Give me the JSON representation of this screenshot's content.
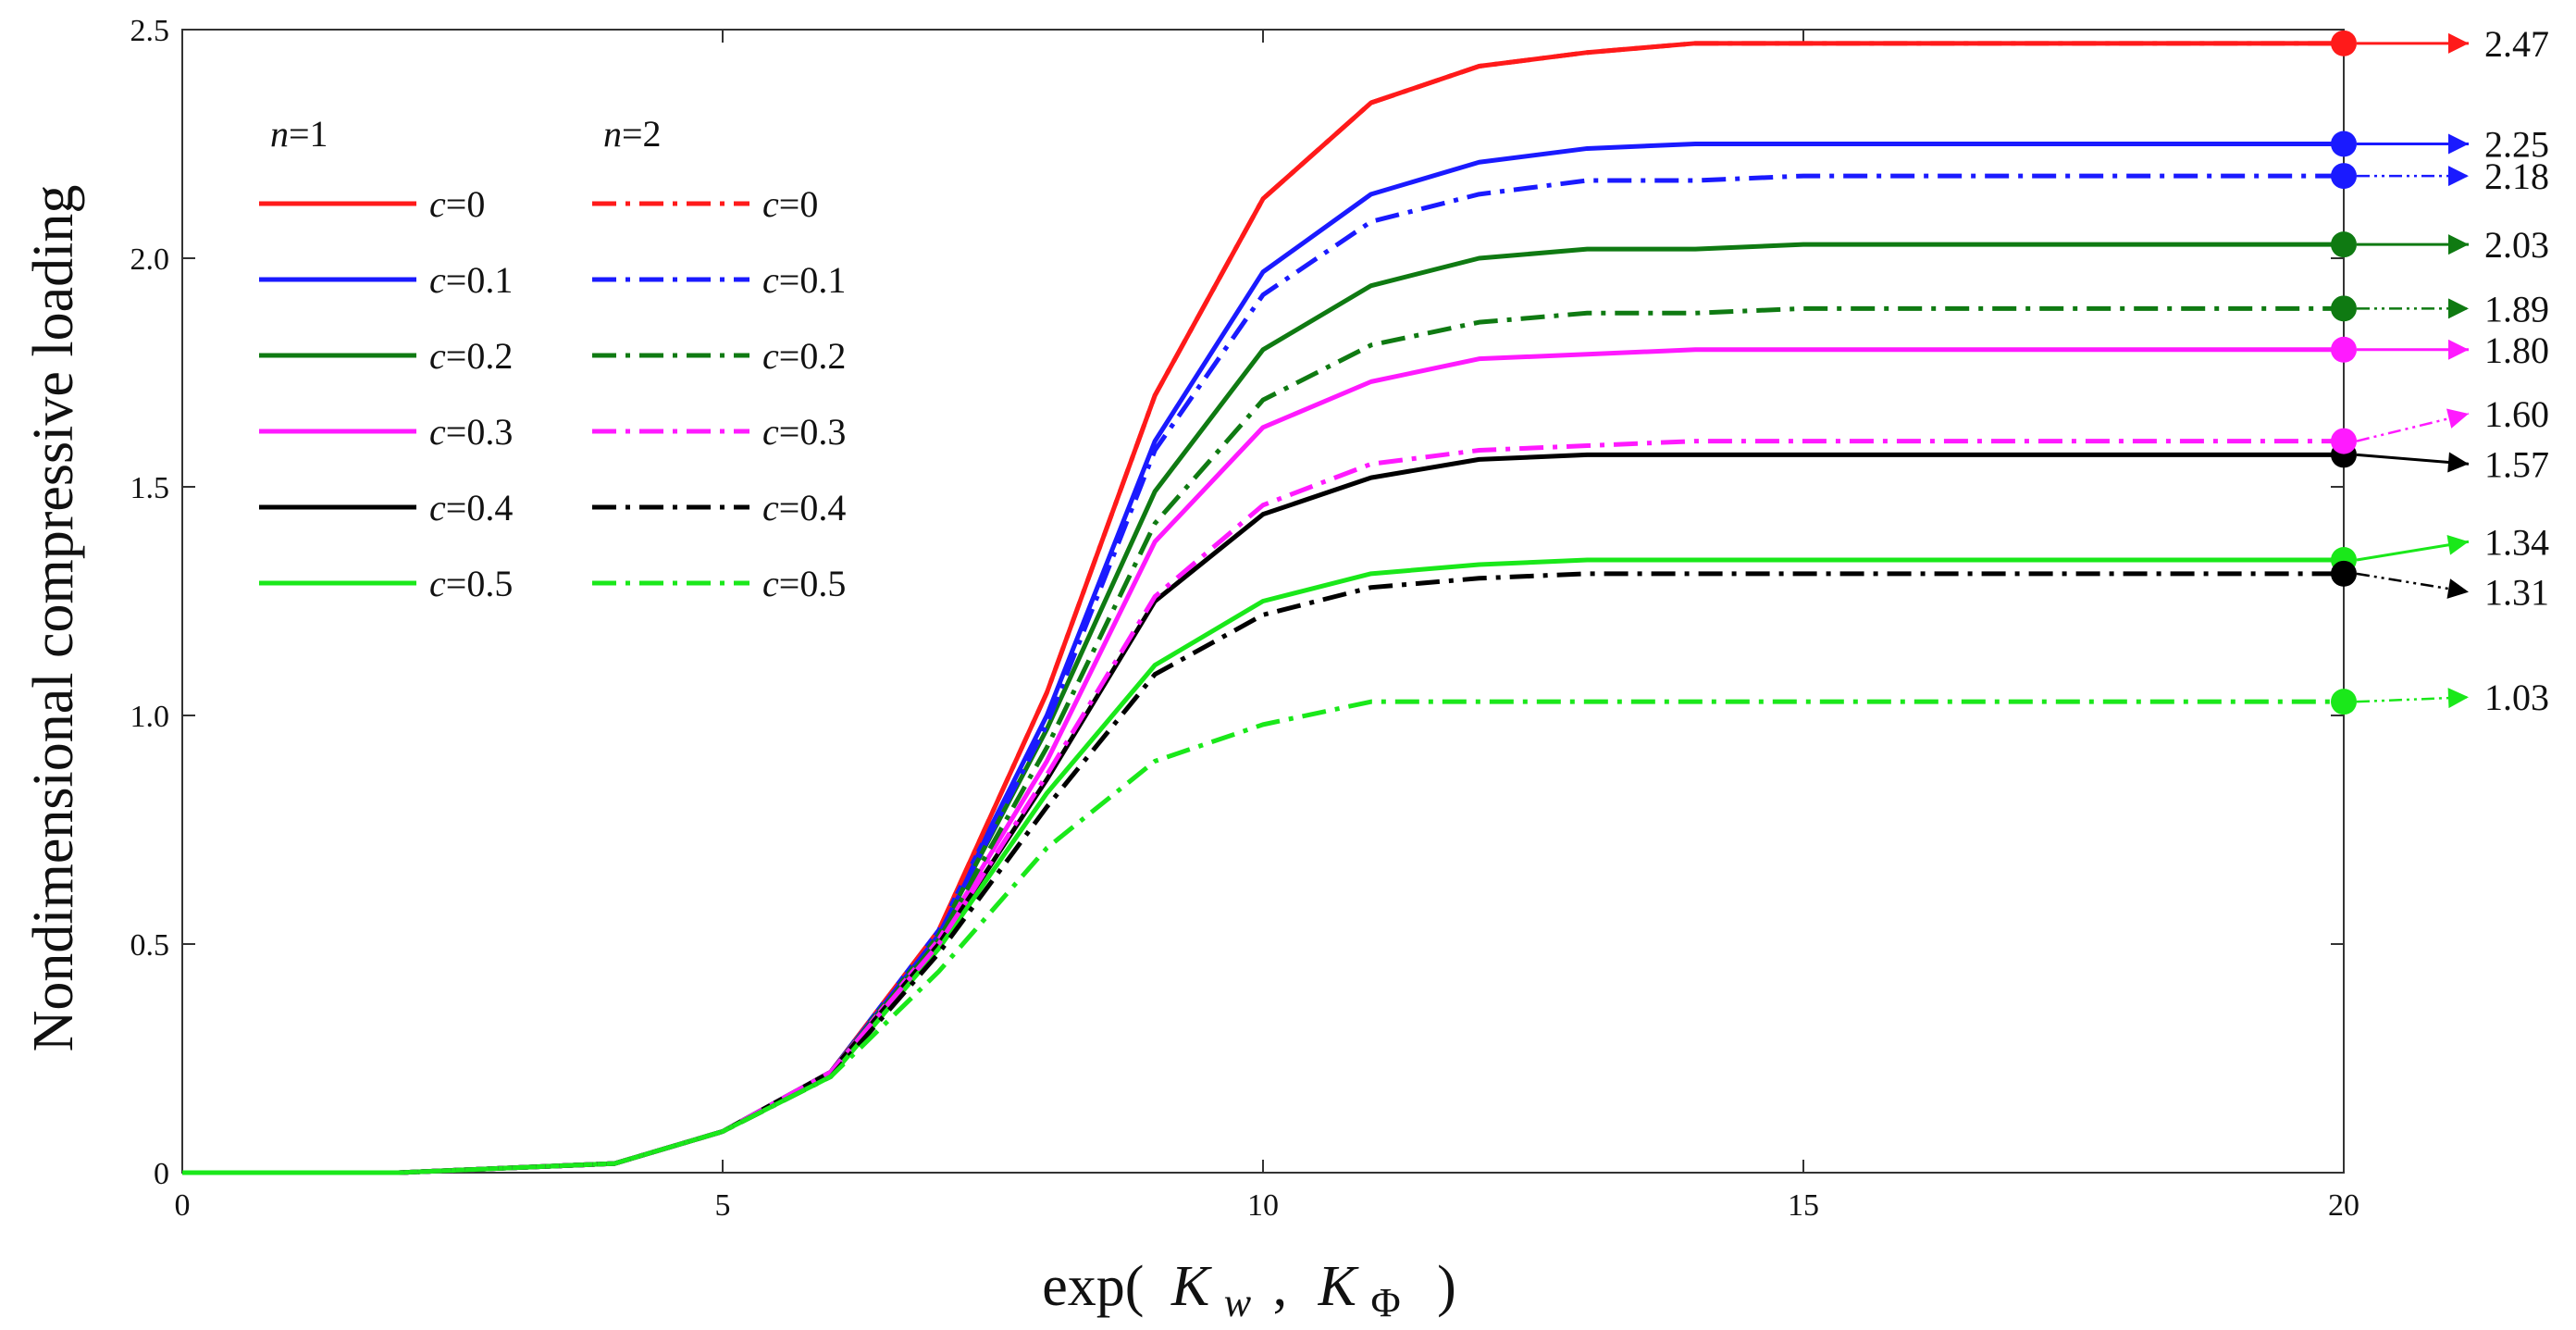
{
  "chart_data": {
    "type": "line",
    "xlabel": "exp( Kw , KΦ )",
    "xlabel_parts": {
      "prefix": "exp(",
      "k": "K",
      "w": "w",
      "comma": ",",
      "phi": "Φ",
      "suffix": ")"
    },
    "ylabel": "Nondimensional compressive loading",
    "xlim": [
      0,
      20
    ],
    "ylim": [
      0,
      2.5
    ],
    "xticks": [
      0,
      5,
      10,
      15,
      20
    ],
    "xtick_labels": [
      "0",
      "5",
      "10",
      "15",
      "20"
    ],
    "yticks": [
      0,
      0.5,
      1.0,
      1.5,
      2.0,
      2.5
    ],
    "ytick_labels": [
      "0",
      "0.5",
      "1.0",
      "1.5",
      "2.0",
      "2.5"
    ],
    "x": [
      0,
      1,
      2,
      3,
      4,
      5,
      6,
      7,
      8,
      9,
      10,
      11,
      12,
      13,
      14,
      15,
      16,
      17,
      18,
      19,
      20
    ],
    "legend": {
      "group_titles": [
        {
          "var": "n",
          "eq": "=1"
        },
        {
          "var": "n",
          "eq": "=2"
        }
      ]
    },
    "series": [
      {
        "name": "n=1, c=0",
        "label_var": "c",
        "label_eq": "=0",
        "n": 1,
        "color": "#ff1a1a",
        "dash": "solid",
        "values": [
          0,
          0,
          0,
          0.01,
          0.02,
          0.09,
          0.22,
          0.53,
          1.05,
          1.7,
          2.13,
          2.34,
          2.42,
          2.45,
          2.47,
          2.47,
          2.47,
          2.47,
          2.47,
          2.47,
          2.47
        ],
        "end_value": "2.47",
        "label_y": 2.47,
        "marker": true,
        "arrow": "solid"
      },
      {
        "name": "n=1, c=0.1",
        "label_var": "c",
        "label_eq": "=0.1",
        "n": 1,
        "color": "#1a1aff",
        "dash": "solid",
        "values": [
          0,
          0,
          0,
          0.01,
          0.02,
          0.09,
          0.22,
          0.53,
          1.0,
          1.6,
          1.97,
          2.14,
          2.21,
          2.24,
          2.25,
          2.25,
          2.25,
          2.25,
          2.25,
          2.25,
          2.25
        ],
        "end_value": "2.25",
        "label_y": 2.25,
        "marker": true,
        "arrow": "solid"
      },
      {
        "name": "n=1, c=0.2",
        "label_var": "c",
        "label_eq": "=0.2",
        "n": 1,
        "color": "#0f7a12",
        "dash": "solid",
        "values": [
          0,
          0,
          0,
          0.01,
          0.02,
          0.09,
          0.22,
          0.52,
          0.97,
          1.49,
          1.8,
          1.94,
          2.0,
          2.02,
          2.02,
          2.03,
          2.03,
          2.03,
          2.03,
          2.03,
          2.03
        ],
        "end_value": "2.03",
        "label_y": 2.03,
        "marker": true,
        "arrow": "solid"
      },
      {
        "name": "n=1, c=0.3",
        "label_var": "c",
        "label_eq": "=0.3",
        "n": 1,
        "color": "#ff1aff",
        "dash": "solid",
        "values": [
          0,
          0,
          0,
          0.01,
          0.02,
          0.09,
          0.22,
          0.51,
          0.9,
          1.38,
          1.63,
          1.73,
          1.78,
          1.79,
          1.8,
          1.8,
          1.8,
          1.8,
          1.8,
          1.8,
          1.8
        ],
        "end_value": "1.80",
        "label_y": 1.8,
        "marker": true,
        "arrow": "solid"
      },
      {
        "name": "n=1, c=0.4",
        "label_var": "c",
        "label_eq": "=0.4",
        "n": 1,
        "color": "#000000",
        "dash": "solid",
        "values": [
          0,
          0,
          0,
          0.01,
          0.02,
          0.09,
          0.22,
          0.5,
          0.86,
          1.25,
          1.44,
          1.52,
          1.56,
          1.57,
          1.57,
          1.57,
          1.57,
          1.57,
          1.57,
          1.57,
          1.57
        ],
        "end_value": "1.57",
        "label_y": 1.55,
        "marker": true,
        "arrow": "solid"
      },
      {
        "name": "n=1, c=0.5",
        "label_var": "c",
        "label_eq": "=0.5",
        "n": 1,
        "color": "#1ae81a",
        "dash": "solid",
        "values": [
          0,
          0,
          0,
          0.01,
          0.02,
          0.09,
          0.21,
          0.49,
          0.83,
          1.11,
          1.25,
          1.31,
          1.33,
          1.34,
          1.34,
          1.34,
          1.34,
          1.34,
          1.34,
          1.34,
          1.34
        ],
        "end_value": "1.34",
        "label_y": 1.38,
        "marker": true,
        "arrow": "solid"
      },
      {
        "name": "n=2, c=0",
        "label_var": "c",
        "label_eq": "=0",
        "n": 2,
        "color": "#ff1a1a",
        "dash": "dashdot",
        "values": [
          0,
          0,
          0,
          0.01,
          0.02,
          0.09,
          0.22,
          0.53,
          1.05,
          1.7,
          2.13,
          2.34,
          2.42,
          2.45,
          2.47,
          2.47,
          2.47,
          2.47,
          2.47,
          2.47,
          2.47
        ],
        "end_value": null,
        "marker": false,
        "arrow": null
      },
      {
        "name": "n=2, c=0.1",
        "label_var": "c",
        "label_eq": "=0.1",
        "n": 2,
        "color": "#1a1aff",
        "dash": "dashdot",
        "values": [
          0,
          0,
          0,
          0.01,
          0.02,
          0.09,
          0.22,
          0.52,
          0.98,
          1.58,
          1.92,
          2.08,
          2.14,
          2.17,
          2.17,
          2.18,
          2.18,
          2.18,
          2.18,
          2.18,
          2.18
        ],
        "end_value": "2.18",
        "label_y": 2.18,
        "marker": true,
        "arrow": "dotted"
      },
      {
        "name": "n=2, c=0.2",
        "label_var": "c",
        "label_eq": "=0.2",
        "n": 2,
        "color": "#0f7a12",
        "dash": "dashdot",
        "values": [
          0,
          0,
          0,
          0.01,
          0.02,
          0.09,
          0.22,
          0.51,
          0.93,
          1.42,
          1.69,
          1.81,
          1.86,
          1.88,
          1.88,
          1.89,
          1.89,
          1.89,
          1.89,
          1.89,
          1.89
        ],
        "end_value": "1.89",
        "label_y": 1.89,
        "marker": true,
        "arrow": "dotted"
      },
      {
        "name": "n=2, c=0.3",
        "label_var": "c",
        "label_eq": "=0.3",
        "n": 2,
        "color": "#ff1aff",
        "dash": "dashdot",
        "values": [
          0,
          0,
          0,
          0.01,
          0.02,
          0.09,
          0.22,
          0.5,
          0.87,
          1.26,
          1.46,
          1.55,
          1.58,
          1.59,
          1.6,
          1.6,
          1.6,
          1.6,
          1.6,
          1.6,
          1.6
        ],
        "end_value": "1.60",
        "label_y": 1.66,
        "marker": true,
        "arrow": "dotted"
      },
      {
        "name": "n=2, c=0.4",
        "label_var": "c",
        "label_eq": "=0.4",
        "n": 2,
        "color": "#000000",
        "dash": "dashdot",
        "values": [
          0,
          0,
          0,
          0.01,
          0.02,
          0.09,
          0.21,
          0.48,
          0.8,
          1.09,
          1.22,
          1.28,
          1.3,
          1.31,
          1.31,
          1.31,
          1.31,
          1.31,
          1.31,
          1.31,
          1.31
        ],
        "end_value": "1.31",
        "label_y": 1.27,
        "marker": true,
        "arrow": "dotted"
      },
      {
        "name": "n=2, c=0.5",
        "label_var": "c",
        "label_eq": "=0.5",
        "n": 2,
        "color": "#1ae81a",
        "dash": "dashdot",
        "values": [
          0,
          0,
          0,
          0.01,
          0.02,
          0.09,
          0.21,
          0.44,
          0.71,
          0.9,
          0.98,
          1.03,
          1.03,
          1.03,
          1.03,
          1.03,
          1.03,
          1.03,
          1.03,
          1.03,
          1.03
        ],
        "end_value": "1.03",
        "label_y": 1.04,
        "marker": true,
        "arrow": "dotted"
      }
    ]
  }
}
